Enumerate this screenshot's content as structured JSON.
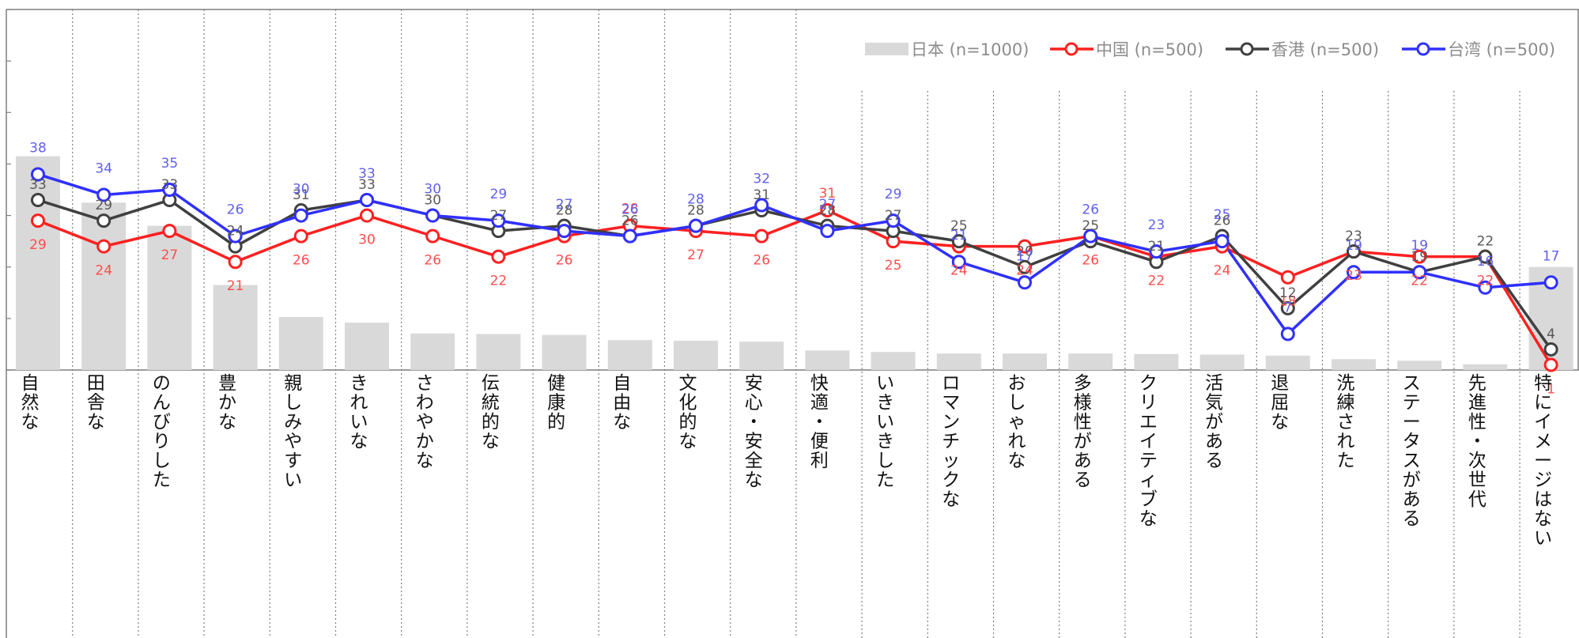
{
  "chart_data": {
    "type": "bar",
    "categories": [
      "自然な",
      "田舎な",
      "のんびりした",
      "豊かな",
      "親しみやすい",
      "きれいな",
      "さわやかな",
      "伝統的な",
      "健康的",
      "自由な",
      "文化的な",
      "安心・安全な",
      "快適・便利",
      "いきいきした",
      "ロマンチックな",
      "おしゃれな",
      "多様性がある",
      "クリエイティブな",
      "活気がある",
      "退屈な",
      "洗練された",
      "ステータスがある",
      "先進性・次世代",
      "特にイメージはない"
    ],
    "series": [
      {
        "name": "日本 (n=1000)",
        "kind": "bar",
        "color": "#d9d9d9",
        "values": [
          41.5,
          32.5,
          28,
          16.5,
          10.3,
          9.2,
          7.1,
          7.0,
          6.8,
          5.8,
          5.7,
          5.5,
          3.8,
          3.5,
          3.2,
          3.2,
          3.2,
          3.1,
          3.0,
          2.8,
          2.1,
          1.8,
          1.1,
          20
        ]
      },
      {
        "name": "中国 (n=500)",
        "kind": "line",
        "color": "#ff2020",
        "values": [
          29,
          24,
          27,
          21,
          26,
          30,
          26,
          22,
          26,
          28,
          27,
          26,
          31,
          25,
          24,
          24,
          26,
          22,
          24,
          18,
          23,
          22,
          22,
          1
        ]
      },
      {
        "name": "香港 (n=500)",
        "kind": "line",
        "color": "#404040",
        "values": [
          33,
          29,
          33,
          24,
          31,
          33,
          30,
          27,
          28,
          26,
          28,
          31,
          28,
          27,
          25,
          20,
          25,
          21,
          26,
          12,
          23,
          19,
          22,
          4
        ]
      },
      {
        "name": "台湾 (n=500)",
        "kind": "line",
        "color": "#3030ff",
        "values": [
          38,
          34,
          35,
          26,
          30,
          33,
          30,
          29,
          27,
          26,
          28,
          32,
          27,
          29,
          21,
          17,
          26,
          23,
          25,
          7,
          19,
          19,
          16,
          17
        ]
      }
    ],
    "ylim": [
      0,
      70
    ],
    "title": "",
    "xlabel": "",
    "ylabel": "",
    "legend": "top-right",
    "grid": "vertical-dotted-separators"
  }
}
